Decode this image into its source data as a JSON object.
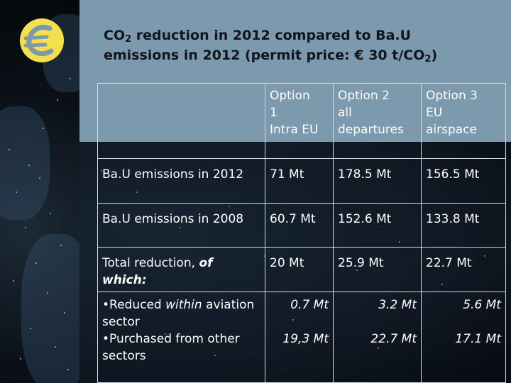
{
  "title": {
    "line1_pre": "CO",
    "line1_sub": "2",
    "line1_post": " reduction in 2012 compared to Ba.U",
    "line2_pre": "emissions in 2012 (permit price: € 30 t/CO",
    "line2_sub": "2",
    "line2_post": ")"
  },
  "table": {
    "headers": [
      "",
      "Option 1 Intra EU",
      "Option 2 all departures",
      "Option 3 EU airspace"
    ],
    "header_lines": [
      [],
      [
        "Option",
        "1",
        "Intra EU"
      ],
      [
        "Option 2",
        "all",
        "departures"
      ],
      [
        "Option 3",
        "EU",
        "airspace"
      ]
    ],
    "rows": [
      {
        "label": "Ba.U emissions in 2012",
        "values": [
          "71 Mt",
          "178.5 Mt",
          "156.5 Mt"
        ]
      },
      {
        "label": "Ba.U emissions in 2008",
        "values": [
          "60.7 Mt",
          "152.6 Mt",
          "133.8 Mt"
        ]
      },
      {
        "label_plain": "Total reduction, ",
        "label_bold_italic": "of which:",
        "values": [
          "20 Mt",
          "25.9 Mt",
          "22.7 Mt"
        ]
      }
    ],
    "breakdown": {
      "item1_prefix": "•Reduced ",
      "item1_italic": "within",
      "item1_rest": "aviation sector",
      "item2": "•Purchased from other sectors",
      "within_aviation": [
        "0.7 Mt",
        "3.2 Mt",
        "5.6 Mt"
      ],
      "purchased": [
        "19,3 Mt",
        "22.7 Mt",
        "17.1 Mt"
      ]
    }
  },
  "colors": {
    "background": "#7c99ad",
    "title_text": "#11161c",
    "table_text": "#ffffff",
    "logo_yellow": "#f4e04a"
  },
  "icons": {
    "logo": "euro-sign-logo"
  }
}
